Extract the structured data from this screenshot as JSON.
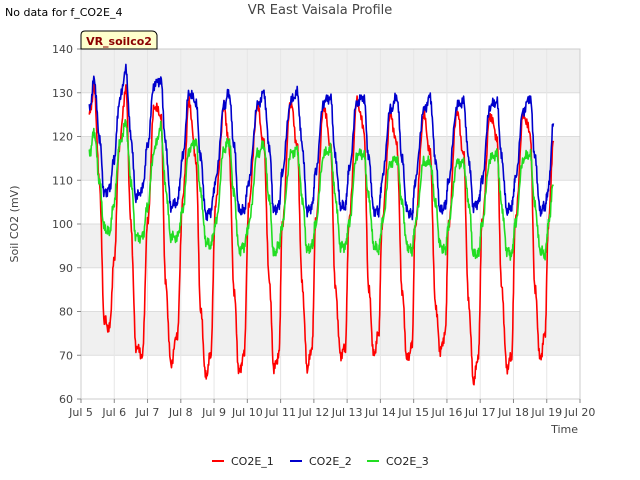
{
  "note": "No data for f_CO2E_4",
  "chart_data": {
    "type": "line",
    "title": "VR East Vaisala Profile",
    "xlabel": "Time",
    "ylabel": "Soil CO2 (mV)",
    "badge": "VR_soilco2",
    "xlim": [
      5,
      20
    ],
    "ylim": [
      60,
      140
    ],
    "x_ticks": [
      {
        "value": 5,
        "label": "Jul 5"
      },
      {
        "value": 6,
        "label": "Jul 6"
      },
      {
        "value": 7,
        "label": "Jul 7"
      },
      {
        "value": 8,
        "label": "Jul 8"
      },
      {
        "value": 9,
        "label": "Jul 9"
      },
      {
        "value": 10,
        "label": "Jul 10"
      },
      {
        "value": 11,
        "label": "Jul 11"
      },
      {
        "value": 12,
        "label": "Jul 12"
      },
      {
        "value": 13,
        "label": "Jul 13"
      },
      {
        "value": 14,
        "label": "Jul 14"
      },
      {
        "value": 15,
        "label": "Jul 15"
      },
      {
        "value": 16,
        "label": "Jul 16"
      },
      {
        "value": 17,
        "label": "Jul 17"
      },
      {
        "value": 18,
        "label": "Jul 18"
      },
      {
        "value": 19,
        "label": "Jul 19"
      },
      {
        "value": 20,
        "label": "Jul 20"
      }
    ],
    "y_ticks": [
      60,
      70,
      80,
      90,
      100,
      110,
      120,
      130,
      140
    ],
    "grid": true,
    "legend_position": "bottom",
    "series": [
      {
        "name": "CO2E_1",
        "color": "#ff0000",
        "x": [
          5.25,
          5.4,
          5.55,
          5.7,
          5.85,
          6.0,
          6.15,
          6.35,
          6.5,
          6.65,
          6.85,
          7.0,
          7.2,
          7.4,
          7.55,
          7.7,
          7.9,
          8.05,
          8.25,
          8.45,
          8.6,
          8.75,
          8.9,
          9.05,
          9.3,
          9.45,
          9.6,
          9.75,
          9.9,
          10.05,
          10.3,
          10.5,
          10.65,
          10.8,
          10.95,
          11.05,
          11.3,
          11.5,
          11.65,
          11.8,
          11.95,
          12.05,
          12.3,
          12.5,
          12.65,
          12.8,
          12.95,
          13.05,
          13.3,
          13.5,
          13.65,
          13.8,
          13.95,
          14.05,
          14.3,
          14.5,
          14.65,
          14.8,
          14.95,
          15.05,
          15.3,
          15.5,
          15.65,
          15.8,
          15.95,
          16.05,
          16.3,
          16.5,
          16.65,
          16.8,
          16.95,
          17.05,
          17.3,
          17.5,
          17.65,
          17.8,
          17.95,
          18.05,
          18.3,
          18.5,
          18.65,
          18.8,
          18.95,
          19.05,
          19.2
        ],
        "y": [
          125,
          131,
          110,
          78,
          76,
          92,
          118,
          131,
          100,
          72,
          70,
          100,
          127,
          125,
          86,
          68,
          75,
          105,
          128,
          115,
          80,
          65,
          70,
          105,
          127,
          118,
          85,
          66,
          70,
          105,
          127,
          118,
          88,
          67,
          70,
          100,
          128,
          118,
          86,
          67,
          72,
          100,
          127,
          118,
          85,
          70,
          72,
          100,
          128,
          122,
          85,
          70,
          75,
          100,
          125,
          118,
          85,
          69,
          72,
          100,
          125,
          116,
          82,
          71,
          75,
          100,
          126,
          116,
          82,
          64,
          70,
          100,
          125,
          120,
          85,
          67,
          70,
          100,
          125,
          121,
          85,
          69,
          75,
          100,
          119
        ]
      },
      {
        "name": "CO2E_2",
        "color": "#0000cc",
        "x": [
          5.25,
          5.4,
          5.55,
          5.7,
          5.85,
          6.0,
          6.15,
          6.35,
          6.5,
          6.65,
          6.85,
          7.0,
          7.2,
          7.4,
          7.55,
          7.7,
          7.9,
          8.05,
          8.25,
          8.45,
          8.6,
          8.75,
          8.9,
          9.05,
          9.3,
          9.45,
          9.6,
          9.75,
          9.9,
          10.05,
          10.3,
          10.5,
          10.65,
          10.8,
          10.95,
          11.05,
          11.3,
          11.5,
          11.65,
          11.8,
          11.95,
          12.05,
          12.3,
          12.5,
          12.65,
          12.8,
          12.95,
          13.05,
          13.3,
          13.5,
          13.65,
          13.8,
          13.95,
          14.05,
          14.3,
          14.5,
          14.65,
          14.8,
          14.95,
          15.05,
          15.3,
          15.5,
          15.65,
          15.8,
          15.95,
          16.05,
          16.3,
          16.5,
          16.65,
          16.8,
          16.95,
          17.05,
          17.3,
          17.5,
          17.65,
          17.8,
          17.95,
          18.05,
          18.3,
          18.5,
          18.65,
          18.8,
          18.95,
          19.05,
          19.2
        ],
        "y": [
          126,
          133,
          120,
          107,
          108,
          115,
          128,
          135,
          120,
          106,
          108,
          118,
          132,
          133,
          118,
          104,
          105,
          115,
          130,
          128,
          115,
          102,
          103,
          110,
          127,
          130,
          118,
          103,
          103,
          110,
          127,
          130,
          118,
          103,
          104,
          112,
          128,
          130,
          118,
          103,
          104,
          112,
          128,
          129,
          115,
          104,
          104,
          112,
          128,
          129,
          115,
          103,
          103,
          110,
          126,
          129,
          115,
          103,
          102,
          110,
          126,
          129,
          115,
          103,
          104,
          110,
          127,
          128,
          115,
          104,
          105,
          110,
          127,
          128,
          115,
          103,
          104,
          110,
          126,
          129,
          115,
          103,
          104,
          108,
          123
        ]
      },
      {
        "name": "CO2E_3",
        "color": "#22dd22",
        "x": [
          5.25,
          5.4,
          5.55,
          5.7,
          5.85,
          6.0,
          6.15,
          6.35,
          6.5,
          6.65,
          6.85,
          7.0,
          7.2,
          7.4,
          7.55,
          7.7,
          7.9,
          8.05,
          8.25,
          8.45,
          8.6,
          8.75,
          8.9,
          9.05,
          9.3,
          9.45,
          9.6,
          9.75,
          9.9,
          10.05,
          10.3,
          10.5,
          10.65,
          10.8,
          10.95,
          11.05,
          11.3,
          11.5,
          11.65,
          11.8,
          11.95,
          12.05,
          12.3,
          12.5,
          12.65,
          12.8,
          12.95,
          13.05,
          13.3,
          13.5,
          13.65,
          13.8,
          13.95,
          14.05,
          14.3,
          14.5,
          14.65,
          14.8,
          14.95,
          15.05,
          15.3,
          15.5,
          15.65,
          15.8,
          15.95,
          16.05,
          16.3,
          16.5,
          16.65,
          16.8,
          16.95,
          17.05,
          17.3,
          17.5,
          17.65,
          17.8,
          17.95,
          18.05,
          18.3,
          18.5,
          18.65,
          18.8,
          18.95,
          19.05,
          19.2
        ],
        "y": [
          116,
          121,
          110,
          99,
          98,
          105,
          118,
          123,
          110,
          97,
          97,
          104,
          117,
          122,
          108,
          97,
          97,
          103,
          117,
          119,
          107,
          96,
          95,
          100,
          117,
          119,
          107,
          94,
          95,
          100,
          116,
          118,
          106,
          93,
          95,
          100,
          116,
          117,
          106,
          94,
          95,
          100,
          116,
          117,
          106,
          95,
          95,
          100,
          116,
          116,
          106,
          95,
          94,
          100,
          114,
          115,
          105,
          95,
          94,
          100,
          114,
          114,
          105,
          95,
          94,
          100,
          114,
          114,
          105,
          93,
          93,
          100,
          115,
          116,
          104,
          94,
          93,
          100,
          115,
          116,
          104,
          94,
          93,
          100,
          109
        ]
      }
    ]
  }
}
